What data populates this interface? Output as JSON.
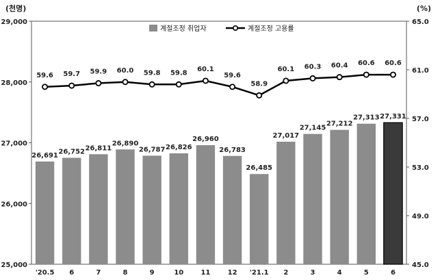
{
  "chart_data": {
    "type": "bar",
    "left_unit": "(천명)",
    "right_unit": "(%)",
    "categories": [
      "'20.5",
      "6",
      "7",
      "8",
      "9",
      "10",
      "11",
      "12",
      "'21.1",
      "2",
      "3",
      "4",
      "5",
      "6"
    ],
    "series": [
      {
        "name": "계절조정 취업자",
        "type": "bar",
        "axis": "left",
        "values": [
          26691,
          26752,
          26811,
          26890,
          26787,
          26826,
          26960,
          26783,
          26485,
          27017,
          27145,
          27212,
          27313,
          27331
        ],
        "labels": [
          "26,691",
          "26,752",
          "26,811",
          "26,890",
          "26,787",
          "26,826",
          "26,960",
          "26,783",
          "26,485",
          "27,017",
          "27,145",
          "27,212",
          "27,313",
          "27,331"
        ],
        "color": "#8c8c8c",
        "highlight_color": "#3a3a3a"
      },
      {
        "name": "계절조정 고용률",
        "type": "line",
        "axis": "right",
        "values": [
          59.6,
          59.7,
          59.9,
          60.0,
          59.8,
          59.8,
          60.1,
          59.6,
          58.9,
          60.1,
          60.3,
          60.4,
          60.6,
          60.6
        ],
        "labels": [
          "59.6",
          "59.7",
          "59.9",
          "60.0",
          "59.8",
          "59.8",
          "60.1",
          "59.6",
          "58.9",
          "60.1",
          "60.3",
          "60.4",
          "60.6",
          "60.6"
        ],
        "color": "#000000"
      }
    ],
    "left_axis": {
      "ylim": [
        25000,
        29000
      ],
      "ticks": [
        25000,
        26000,
        27000,
        28000,
        29000
      ],
      "tick_labels": [
        "25,000",
        "26,000",
        "27,000",
        "28,000",
        "29,000"
      ]
    },
    "right_axis": {
      "ylim": [
        45.0,
        65.0
      ],
      "ticks": [
        45.0,
        49.0,
        53.0,
        57.0,
        61.0,
        65.0
      ],
      "tick_labels": [
        "45.0",
        "49.0",
        "53.0",
        "57.0",
        "61.0",
        "65.0"
      ]
    },
    "legend_position": "top-center",
    "grid": false
  }
}
